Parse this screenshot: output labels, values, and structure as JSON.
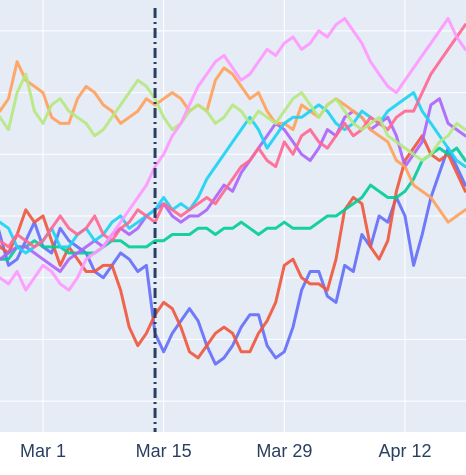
{
  "chart_data": {
    "type": "line",
    "title": "",
    "xlabel": "",
    "ylabel": "",
    "x_axis": {
      "start": "2025-02-20",
      "end": "2025-04-19",
      "tick_dates": [
        "2025-03-01",
        "2025-03-15",
        "2025-03-29",
        "2025-04-12"
      ],
      "tick_labels": [
        "Mar 1",
        "Mar 15",
        "Mar 29",
        "Apr 12"
      ]
    },
    "y_axis": {
      "range": [
        0,
        7
      ],
      "gridlines": [
        0.5,
        1.5,
        2.5,
        3.5,
        4.5,
        5.5,
        6.5
      ],
      "tick_labels_visible": false
    },
    "grid": true,
    "plot_background": "#e5ecf6",
    "reference_line": {
      "date": "2025-03-14",
      "style": "dashdot",
      "color": "#2a3f5f"
    },
    "series": [
      {
        "color": "#636efa",
        "values": [
          3.1,
          3.9,
          4.1,
          3.7,
          3.2,
          2.7,
          2.8,
          3.1,
          3.4,
          3.0,
          2.9,
          3.3,
          3.1,
          3.0,
          2.9,
          2.6,
          2.5,
          2.7,
          2.9,
          2.8,
          2.6,
          2.7,
          1.6,
          1.3,
          1.6,
          1.8,
          2.0,
          1.8,
          1.4,
          1.1,
          1.2,
          1.4,
          1.7,
          1.9,
          1.9,
          1.4,
          1.2,
          1.3,
          1.7,
          2.3,
          2.6,
          2.6,
          2.2,
          2.1,
          2.7,
          2.6,
          3.2,
          3.0,
          3.5,
          3.4,
          3.8,
          3.5,
          2.7,
          3.2,
          3.8,
          4.2,
          4.6,
          4.3,
          4.0
        ]
      },
      {
        "color": "#ef553b",
        "values": [
          3.5,
          4.0,
          3.8,
          3.3,
          3.0,
          2.9,
          3.2,
          3.6,
          3.4,
          3.5,
          3.1,
          2.7,
          3.0,
          2.8,
          2.6,
          2.6,
          2.7,
          2.7,
          2.3,
          1.7,
          1.4,
          1.6,
          1.9,
          2.1,
          2.0,
          1.7,
          1.3,
          1.2,
          1.4,
          1.6,
          1.7,
          1.6,
          1.3,
          1.3,
          1.6,
          1.8,
          2.1,
          2.7,
          2.8,
          2.5,
          2.4,
          2.4,
          2.3,
          2.8,
          3.6,
          3.8,
          3.7,
          3.0,
          2.8,
          3.1,
          3.9,
          4.4,
          4.6,
          4.8,
          4.5,
          4.4,
          4.5,
          4.2,
          3.9
        ]
      },
      {
        "color": "#00cc96",
        "values": [
          3.0,
          3.1,
          3.0,
          2.9,
          2.8,
          2.8,
          3.0,
          3.0,
          3.1,
          3.0,
          3.0,
          3.0,
          2.9,
          2.9,
          2.9,
          2.9,
          3.0,
          3.1,
          3.1,
          3.0,
          3.0,
          3.0,
          3.1,
          3.1,
          3.2,
          3.2,
          3.2,
          3.3,
          3.3,
          3.2,
          3.3,
          3.3,
          3.4,
          3.3,
          3.2,
          3.3,
          3.3,
          3.4,
          3.3,
          3.3,
          3.3,
          3.4,
          3.5,
          3.5,
          3.6,
          3.7,
          3.8,
          4.0,
          3.9,
          3.8,
          3.8,
          3.9,
          4.1,
          4.4,
          4.5,
          4.6,
          4.5,
          4.6,
          4.4
        ]
      },
      {
        "color": "#ab63fa",
        "values": [
          2.7,
          2.7,
          2.8,
          2.7,
          2.8,
          2.9,
          3.0,
          3.0,
          2.9,
          2.8,
          2.7,
          2.6,
          2.8,
          2.9,
          3.0,
          3.1,
          3.0,
          3.2,
          3.3,
          3.2,
          3.3,
          3.5,
          3.6,
          3.7,
          3.5,
          3.4,
          3.5,
          3.5,
          3.6,
          3.8,
          4.0,
          3.9,
          4.2,
          4.4,
          4.6,
          4.8,
          5.0,
          4.9,
          4.7,
          4.5,
          4.4,
          4.6,
          4.9,
          4.8,
          5.1,
          5.2,
          5.1,
          4.9,
          5.0,
          5.1,
          4.8,
          4.3,
          4.5,
          4.7,
          5.3,
          5.4,
          5.0,
          4.9,
          4.8
        ]
      },
      {
        "color": "#ffa15a",
        "values": [
          5.2,
          5.0,
          4.9,
          5.6,
          5.2,
          5.4,
          6.0,
          5.7,
          5.6,
          5.5,
          5.1,
          5.0,
          5.0,
          5.4,
          5.6,
          5.5,
          5.3,
          5.2,
          5.0,
          5.1,
          5.2,
          5.4,
          5.3,
          5.4,
          5.5,
          5.4,
          5.2,
          5.3,
          5.2,
          5.7,
          5.9,
          5.8,
          5.6,
          5.4,
          5.5,
          5.2,
          5.0,
          5.0,
          4.9,
          5.3,
          5.2,
          5.1,
          5.3,
          5.4,
          5.3,
          5.2,
          5.1,
          4.9,
          4.8,
          4.7,
          4.4,
          4.3,
          4.0,
          3.9,
          3.8,
          3.6,
          3.4,
          3.5,
          3.6
        ]
      },
      {
        "color": "#19d3f3",
        "values": [
          3.2,
          3.0,
          3.1,
          3.2,
          3.4,
          3.3,
          3.0,
          2.9,
          3.0,
          3.1,
          3.3,
          3.0,
          3.0,
          3.2,
          3.3,
          3.1,
          3.2,
          3.4,
          3.5,
          3.3,
          3.4,
          3.5,
          3.6,
          3.8,
          3.6,
          3.7,
          3.6,
          3.8,
          4.1,
          4.3,
          4.5,
          4.7,
          4.9,
          5.1,
          4.9,
          4.6,
          4.8,
          5.0,
          5.1,
          5.1,
          5.2,
          5.3,
          5.2,
          5.0,
          4.9,
          5.0,
          5.2,
          5.1,
          5.0,
          5.2,
          5.3,
          5.4,
          5.5,
          5.2,
          5.0,
          4.8,
          4.6,
          4.4,
          4.3
        ]
      },
      {
        "color": "#ff6692",
        "values": [
          3.2,
          3.4,
          3.3,
          3.2,
          3.1,
          3.0,
          3.2,
          3.1,
          3.0,
          3.1,
          3.3,
          3.5,
          3.3,
          3.2,
          3.3,
          3.5,
          3.2,
          3.1,
          3.3,
          3.4,
          3.6,
          3.5,
          3.4,
          3.7,
          3.6,
          3.5,
          3.6,
          3.7,
          3.8,
          3.7,
          3.9,
          4.1,
          4.3,
          4.4,
          4.6,
          4.4,
          4.3,
          4.7,
          4.5,
          4.8,
          4.9,
          4.7,
          4.6,
          4.8,
          5.0,
          4.8,
          4.9,
          5.1,
          5.0,
          4.9,
          5.1,
          5.2,
          5.2,
          5.5,
          5.8,
          6.0,
          6.2,
          6.4,
          6.6
        ]
      },
      {
        "color": "#b6e880",
        "values": [
          5.2,
          5.4,
          5.7,
          5.3,
          5.1,
          4.9,
          5.5,
          5.8,
          5.2,
          5.0,
          5.3,
          5.4,
          5.2,
          5.1,
          5.0,
          4.8,
          4.9,
          5.1,
          5.3,
          5.5,
          5.7,
          5.6,
          5.4,
          5.1,
          4.9,
          5.0,
          5.2,
          5.3,
          5.2,
          5.0,
          5.1,
          5.3,
          5.2,
          5.0,
          5.2,
          5.1,
          5.0,
          5.2,
          5.4,
          5.5,
          5.3,
          5.1,
          5.3,
          5.4,
          5.2,
          5.0,
          4.9,
          5.0,
          5.1,
          4.8,
          4.7,
          4.6,
          4.5,
          4.4,
          4.5,
          4.7,
          4.8,
          5.0,
          4.9
        ]
      },
      {
        "color": "#ff97ff",
        "values": [
          2.2,
          2.3,
          2.4,
          2.3,
          2.5,
          2.4,
          2.6,
          2.3,
          2.5,
          2.7,
          2.6,
          2.4,
          2.3,
          2.5,
          2.8,
          2.9,
          3.0,
          3.2,
          3.4,
          3.6,
          3.8,
          4.0,
          4.3,
          4.5,
          4.8,
          5.0,
          5.3,
          5.6,
          5.8,
          6.0,
          6.1,
          5.9,
          5.7,
          5.8,
          6.0,
          6.2,
          6.1,
          6.3,
          6.4,
          6.2,
          6.3,
          6.5,
          6.4,
          6.6,
          6.7,
          6.5,
          6.3,
          6.0,
          5.8,
          5.6,
          5.5,
          5.7,
          5.9,
          6.1,
          6.3,
          6.5,
          6.7,
          6.4,
          6.2
        ]
      }
    ]
  }
}
